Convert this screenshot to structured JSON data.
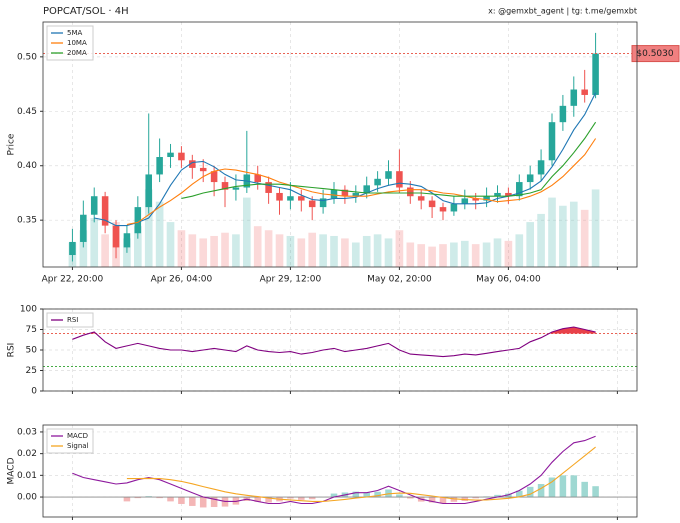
{
  "chart_data": [
    {
      "type": "candlestick",
      "title": "POPCAT/SOL · 4H",
      "attribution": "x: @gemxbt_agent | tg: t.me/gemxbt",
      "ylabel": "Price",
      "xlim": [
        -2.7,
        51.8
      ],
      "xticks": [
        {
          "value": 0,
          "label": "Apr 22, 20:00"
        },
        {
          "value": 10,
          "label": "Apr 26, 04:00"
        },
        {
          "value": 20,
          "label": "Apr 29, 12:00"
        },
        {
          "value": 30,
          "label": "May 02, 20:00"
        },
        {
          "value": 40,
          "label": "May 06, 04:00"
        },
        {
          "value": 50,
          "label": null
        }
      ],
      "ylim": [
        0.307,
        0.532
      ],
      "yticks": [
        0.35,
        {
          "value": 0.4,
          "label": "0.40"
        },
        0.45,
        {
          "value": 0.5,
          "label": "0.50"
        }
      ],
      "grid": true,
      "up_color": "#26a69a",
      "down_color": "#ef5350",
      "open": [
        0.318,
        0.33,
        0.355,
        0.372,
        0.345,
        0.325,
        0.338,
        0.362,
        0.392,
        0.408,
        0.412,
        0.405,
        0.398,
        0.395,
        0.385,
        0.378,
        0.38,
        0.392,
        0.385,
        0.375,
        0.368,
        0.372,
        0.368,
        0.362,
        0.37,
        0.378,
        0.372,
        0.375,
        0.382,
        0.388,
        0.395,
        0.38,
        0.372,
        0.368,
        0.362,
        0.358,
        0.365,
        0.37,
        0.368,
        0.372,
        0.375,
        0.372,
        0.385,
        0.392,
        0.405,
        0.44,
        0.455,
        0.47,
        0.465
      ],
      "high": [
        0.342,
        0.368,
        0.38,
        0.376,
        0.35,
        0.345,
        0.372,
        0.448,
        0.425,
        0.42,
        0.418,
        0.41,
        0.406,
        0.4,
        0.39,
        0.392,
        0.432,
        0.4,
        0.39,
        0.38,
        0.385,
        0.378,
        0.372,
        0.378,
        0.385,
        0.382,
        0.382,
        0.39,
        0.395,
        0.405,
        0.415,
        0.386,
        0.378,
        0.372,
        0.366,
        0.372,
        0.378,
        0.375,
        0.38,
        0.382,
        0.38,
        0.392,
        0.4,
        0.415,
        0.448,
        0.465,
        0.482,
        0.488,
        0.522
      ],
      "low": [
        0.312,
        0.325,
        0.348,
        0.338,
        0.315,
        0.32,
        0.333,
        0.356,
        0.385,
        0.398,
        0.398,
        0.388,
        0.385,
        0.372,
        0.362,
        0.368,
        0.375,
        0.378,
        0.365,
        0.355,
        0.36,
        0.358,
        0.35,
        0.356,
        0.365,
        0.365,
        0.366,
        0.37,
        0.376,
        0.382,
        0.375,
        0.365,
        0.36,
        0.352,
        0.35,
        0.354,
        0.36,
        0.36,
        0.362,
        0.366,
        0.365,
        0.368,
        0.378,
        0.386,
        0.4,
        0.432,
        0.445,
        0.458,
        0.462
      ],
      "close": [
        0.33,
        0.355,
        0.372,
        0.345,
        0.325,
        0.338,
        0.362,
        0.392,
        0.408,
        0.412,
        0.405,
        0.398,
        0.395,
        0.385,
        0.378,
        0.38,
        0.392,
        0.385,
        0.375,
        0.368,
        0.372,
        0.368,
        0.362,
        0.37,
        0.378,
        0.372,
        0.375,
        0.382,
        0.388,
        0.395,
        0.38,
        0.372,
        0.368,
        0.362,
        0.358,
        0.365,
        0.37,
        0.368,
        0.372,
        0.375,
        0.372,
        0.385,
        0.392,
        0.405,
        0.44,
        0.455,
        0.47,
        0.465,
        0.503
      ],
      "volume": [
        30,
        45,
        60,
        40,
        55,
        35,
        50,
        95,
        80,
        55,
        45,
        40,
        35,
        38,
        42,
        40,
        85,
        50,
        45,
        40,
        38,
        35,
        42,
        40,
        38,
        35,
        30,
        38,
        40,
        35,
        45,
        30,
        28,
        25,
        28,
        30,
        32,
        28,
        30,
        35,
        32,
        40,
        55,
        65,
        85,
        75,
        80,
        70,
        95
      ],
      "vlim": [
        0,
        300
      ],
      "series": [
        {
          "name": "5MA",
          "color": "#1f77b4",
          "values": [
            null,
            null,
            0.352,
            0.35,
            0.345,
            0.345,
            0.348,
            0.352,
            0.365,
            0.382,
            0.396,
            0.403,
            0.404,
            0.399,
            0.392,
            0.387,
            0.386,
            0.384,
            0.382,
            0.38,
            0.378,
            0.373,
            0.369,
            0.368,
            0.37,
            0.37,
            0.371,
            0.375,
            0.379,
            0.382,
            0.384,
            0.383,
            0.381,
            0.375,
            0.368,
            0.365,
            0.365,
            0.365,
            0.366,
            0.37,
            0.372,
            0.375,
            0.379,
            0.386,
            0.399,
            0.415,
            0.433,
            0.447,
            0.467
          ]
        },
        {
          "name": "10MA",
          "color": "#ff7f0e",
          "values": [
            null,
            null,
            null,
            null,
            null,
            0.346,
            0.348,
            0.355,
            0.362,
            0.368,
            0.375,
            0.383,
            0.39,
            0.395,
            0.397,
            0.396,
            0.394,
            0.392,
            0.389,
            0.385,
            0.382,
            0.379,
            0.376,
            0.374,
            0.373,
            0.372,
            0.372,
            0.372,
            0.374,
            0.376,
            0.377,
            0.378,
            0.378,
            0.377,
            0.375,
            0.374,
            0.372,
            0.37,
            0.369,
            0.367,
            0.368,
            0.369,
            0.372,
            0.376,
            0.382,
            0.39,
            0.4,
            0.41,
            0.425
          ]
        },
        {
          "name": "20MA",
          "color": "#2ca02c",
          "values": [
            null,
            null,
            null,
            null,
            null,
            null,
            null,
            null,
            null,
            null,
            0.37,
            0.372,
            0.375,
            0.377,
            0.379,
            0.381,
            0.382,
            0.383,
            0.383,
            0.383,
            0.382,
            0.381,
            0.38,
            0.379,
            0.378,
            0.377,
            0.376,
            0.375,
            0.375,
            0.375,
            0.375,
            0.375,
            0.375,
            0.374,
            0.373,
            0.372,
            0.372,
            0.372,
            0.372,
            0.372,
            0.372,
            0.373,
            0.375,
            0.378,
            0.39,
            0.4,
            0.412,
            0.425,
            0.44
          ]
        }
      ],
      "legend": "upper left",
      "price_line": 0.503,
      "price_label": "$0.5030"
    },
    {
      "type": "line",
      "ylabel": "RSI",
      "xlim": [
        -2.7,
        51.8
      ],
      "xticks": [
        0,
        10,
        20,
        30,
        40,
        50
      ],
      "ylim": [
        0,
        100
      ],
      "yticks": [
        0,
        25,
        50,
        75,
        100
      ],
      "grid": true,
      "levels": [
        {
          "value": 70,
          "color": "#e74c3c"
        },
        {
          "value": 30,
          "color": "#2ca02c"
        }
      ],
      "overbought_fill": "#e8414a",
      "series": [
        {
          "name": "RSI",
          "color": "#800080",
          "values": [
            63,
            68,
            72,
            60,
            52,
            55,
            58,
            55,
            52,
            50,
            50,
            48,
            50,
            52,
            50,
            48,
            55,
            50,
            48,
            47,
            48,
            45,
            47,
            50,
            52,
            48,
            50,
            52,
            55,
            58,
            50,
            45,
            44,
            43,
            42,
            43,
            45,
            44,
            46,
            48,
            50,
            52,
            60,
            65,
            72,
            76,
            78,
            75,
            72
          ]
        }
      ],
      "legend": "upper left"
    },
    {
      "type": "line",
      "ylabel": "MACD",
      "xlim": [
        -2.7,
        51.8
      ],
      "xticks": [
        0,
        10,
        20,
        30,
        40,
        50
      ],
      "ylim": [
        -0.0092,
        0.0332
      ],
      "yticks": [
        {
          "value": 0,
          "label": "0.00"
        },
        {
          "value": 0.01,
          "label": "0.01"
        },
        {
          "value": 0.02,
          "label": "0.02"
        },
        {
          "value": 0.03,
          "label": "0.03"
        }
      ],
      "grid": true,
      "baseline": 0,
      "series": [
        {
          "name": "MACD",
          "color": "#8e1a9e",
          "values": [
            0.011,
            0.009,
            0.008,
            0.007,
            0.006,
            0.0065,
            0.008,
            0.009,
            0.008,
            0.006,
            0.004,
            0.002,
            0.0,
            -0.001,
            -0.002,
            -0.002,
            -0.001,
            -0.002,
            -0.003,
            -0.003,
            -0.002,
            -0.003,
            -0.003,
            -0.002,
            0.0,
            0.001,
            0.002,
            0.002,
            0.003,
            0.005,
            0.003,
            0.001,
            -0.001,
            -0.002,
            -0.003,
            -0.003,
            -0.003,
            -0.002,
            -0.001,
            0.0,
            0.001,
            0.003,
            0.006,
            0.01,
            0.016,
            0.021,
            0.025,
            0.026,
            0.028
          ]
        },
        {
          "name": "Signal",
          "color": "#f5a623",
          "values": [
            null,
            null,
            null,
            null,
            null,
            0.0085,
            0.0085,
            0.0086,
            0.0085,
            0.008,
            0.0072,
            0.0061,
            0.0048,
            0.0036,
            0.0024,
            0.0015,
            0.0008,
            0.0002,
            -0.0005,
            -0.001,
            -0.0013,
            -0.0017,
            -0.002,
            -0.002,
            -0.0016,
            -0.0011,
            -0.0005,
            0.0,
            0.0006,
            0.0015,
            0.0018,
            0.0017,
            0.0011,
            0.0005,
            -0.0002,
            -0.0008,
            -0.0012,
            -0.0014,
            -0.0013,
            -0.001,
            -0.0006,
            0.0001,
            0.0013,
            0.004,
            0.007,
            0.011,
            0.015,
            0.019,
            0.023
          ]
        }
      ],
      "histogram": {
        "up_color": "#9fd8d2",
        "down_color": "#f4b6b6",
        "values": [
          null,
          null,
          null,
          null,
          null,
          -0.002,
          -0.0005,
          0.0004,
          -0.0005,
          -0.002,
          -0.0032,
          -0.0041,
          -0.0048,
          -0.0046,
          -0.0044,
          -0.0035,
          -0.0018,
          -0.0022,
          -0.0025,
          -0.002,
          -0.0007,
          -0.0013,
          -0.001,
          0.0,
          0.0016,
          0.0021,
          0.0025,
          0.002,
          0.0024,
          0.0035,
          0.0012,
          -0.0007,
          -0.0021,
          -0.0025,
          -0.0028,
          -0.0022,
          -0.0018,
          -0.0006,
          0.0003,
          0.001,
          0.0016,
          0.0029,
          0.0047,
          0.006,
          0.009,
          0.01,
          0.01,
          0.007,
          0.005
        ]
      },
      "legend": "upper left"
    }
  ]
}
